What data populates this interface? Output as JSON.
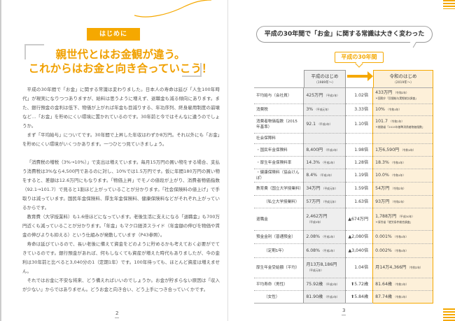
{
  "left_page": {
    "tag": "はじめに",
    "heading": [
      "親世代とはお金観が違う。",
      "これからはお金と向き合っていこう！"
    ],
    "paragraphs": [
      "平成の30年間で「お金」に関する常識は変わりました。日本人の寿命は延び「人生100年時代」が現実になりつつありますが、給料は思うように増えず、退職金も減る傾向にあります。また、銀行預金の金利は低下、物価が上がれば年金も目減りする、年功序列、終身雇用制度の崩壊など…「お金」を貯めにくい環境に置かれているのです。30年前と今ではそんなに違うのでしょうか。",
      "まず「平均給与」についてです。30年間で上昇した年収はわずか8万円。それ以外にも「お金」を貯めにくい環境がいくつかあります。一つひとつ見ていきましょう。",
      "「消費税の増税（3%→10%）」で支出は増えています。毎月15万円の買い物をする場合、支払う消費税は3%なら4,500円であるのに対し、10%では1.5万円です。仮に年間180万円の買い物をすると、差額は12.6万円にもなります。「物価上昇」でモノの値段が上がり、消費者物価指数（92.1→101.7）で見ると1割ほど上がっていることが分かります。「社会保険料の値上げ」で手取りは減っています。国民年金保険料、厚生年金保険料、健康保険料などがそれぞれ上がっているからです。",
      "教育費（大学授業料）も1.6倍ほどになっています。老後生活に支えになる「退職金」も700万円近くも減っていることが分かります。「年金」もマクロ経済スライド（年金額の伸びを物価や賃金の伸びよりも抑える）という仕組みが発動しています（P43参照）。",
      "寿命は延びているので、長い老後に備えて資金をどのように貯めるかも考えておく必要がでてきているのです。銀行預金があれば、何もしなくても資産が増えた時代もありましたが、今の金利は30年前と比べると3,040分の1（定期1年）です。100年待っても、ほとんど資産は増えません。",
      "それではお金に不安な将来、どう備えればいいのでしょうか。お金が貯まらない原因は「収入が少ない」からではありません。どうお金と向き合い、どう上手につき合っていくかです。"
    ],
    "page_number": "2"
  },
  "right_page": {
    "bubble": "平成の30年間で「お金」に関する常識は大きく変わった",
    "period_label": "平成の30年間",
    "col_heisei": {
      "title": "平成のはじめ",
      "sub": "（1989年〜）"
    },
    "col_reiwa": {
      "title": "令和のはじめ",
      "sub": "（2019年〜）"
    },
    "rows": [
      {
        "label": "平均給与（会社員）",
        "h": "425万円",
        "hn": "（平成2年）",
        "r": "1.02倍",
        "v": "433万円",
        "vn": "（令和2年）",
        "src": "＊国税庁「民間給与実態統計調査」"
      },
      {
        "label": "消費税",
        "h": "3%",
        "hn": "（平成元年）",
        "r": "3.33倍",
        "v": "10%",
        "vn": "（令和4年）",
        "src": ""
      },
      {
        "label": "消費者物価指数（2015年基準）",
        "h": "92.1",
        "hn": "（平成2年）",
        "r": "1.10倍",
        "v": "101.7",
        "vn": "（令和2年）",
        "src": "＊総務省「2015年基準消費者物価指数」"
      },
      {
        "label": "社会保障料",
        "h": "",
        "hn": "",
        "r": "",
        "v": "",
        "vn": "",
        "src": ""
      },
      {
        "label": "・国民年金保険料",
        "h": "8,400円",
        "hn": "（平成2年）",
        "r": "1.98倍",
        "v": "1万6,590円",
        "vn": "（令和4年）",
        "src": ""
      },
      {
        "label": "・厚生年金保険料率",
        "h": "14.3%",
        "hn": "（平成2年）",
        "r": "1.28倍",
        "v": "18.3%",
        "vn": "（令和4年）",
        "src": ""
      },
      {
        "label": "・健康保険料（協会けんぽ）",
        "h": "8.4%",
        "hn": "（平成2年）",
        "r": "1.19倍",
        "v": "10.0%",
        "vn": "（令和4年）",
        "src": ""
      },
      {
        "label": "教育費（国立大学授業料）",
        "h": "34万円",
        "hn": "（平成元年）",
        "r": "1.59倍",
        "v": "54万円",
        "vn": "（令和2年）",
        "src": ""
      },
      {
        "label": "（私立大学授業料）",
        "h": "57万円",
        "hn": "（平成元年）",
        "r": "1.63倍",
        "v": "93万円",
        "vn": "（令和2年）",
        "src": "",
        "sub": true
      },
      {
        "label": "退職金",
        "h": "2,462万円",
        "hn": "（平成5年）",
        "r": "▲674万円",
        "v": "1,788万円",
        "vn": "（平成30年）",
        "src": "＊厚労省「就労条件総合調査」",
        "hblock": true
      },
      {
        "label": "預金金利（普通預金）",
        "h": "2.08%",
        "hn": "（平成2年）",
        "r": "▲2,080倍",
        "v": "0.001%",
        "vn": "（令和4年）",
        "src": ""
      },
      {
        "label": "（定期1年）",
        "h": "6.08%",
        "hn": "（平成2年）",
        "r": "▲3,040倍",
        "v": "0.002%",
        "vn": "（令和4年）",
        "src": "",
        "sub": true
      },
      {
        "label": "厚生年金受給額（平均）",
        "h": "月13万8,186円",
        "hn": "（平成元年）",
        "r": "1.04倍",
        "v": "月14万4,366円",
        "vn": "（令和2年）",
        "src": "",
        "hblock": true
      },
      {
        "label": "平均寿命（男性）",
        "h": "75.92歳",
        "hn": "（平成2年）",
        "r": "⬆5.72歳",
        "v": "81.64歳",
        "vn": "（令和2年）",
        "src": ""
      },
      {
        "label": "（女性）",
        "h": "81.90歳",
        "hn": "（平成2年）",
        "r": "⬆5.84歳",
        "v": "87.74歳",
        "vn": "（令和2年）",
        "src": "",
        "sub": true
      }
    ],
    "page_number": "3"
  },
  "colors": {
    "accent": "#f5a800",
    "accent_light": "#fdf0d9",
    "gray_col": "#eeeeee"
  }
}
